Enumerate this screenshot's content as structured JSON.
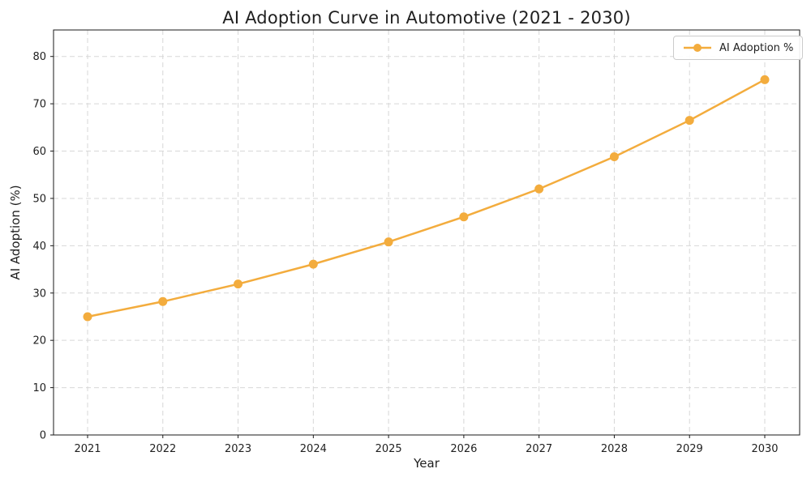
{
  "chart_data": {
    "type": "line",
    "title": "AI Adoption Curve in Automotive (2021 - 2030)",
    "xlabel": "Year",
    "ylabel": "AI Adoption (%)",
    "x": [
      2021,
      2022,
      2023,
      2024,
      2025,
      2026,
      2027,
      2028,
      2029,
      2030
    ],
    "series": [
      {
        "name": "AI Adoption %",
        "values": [
          25.0,
          28.2,
          31.9,
          36.1,
          40.8,
          46.1,
          52.0,
          58.8,
          66.5,
          75.1
        ],
        "color": "#F3AC3D",
        "marker": "circle",
        "line_width": 2.5,
        "marker_radius": 5.5
      }
    ],
    "ylim": [
      0,
      85.6
    ],
    "yticks": [
      0,
      10,
      20,
      30,
      40,
      50,
      60,
      70,
      80
    ],
    "grid": true,
    "grid_style": "dashed",
    "legend_position": "upper right"
  },
  "colors": {
    "accent": "#F3AC3D",
    "grid": "#d7d7d7",
    "axis": "#1a1a1a",
    "text": "#1f1f1f",
    "background": "#ffffff"
  }
}
